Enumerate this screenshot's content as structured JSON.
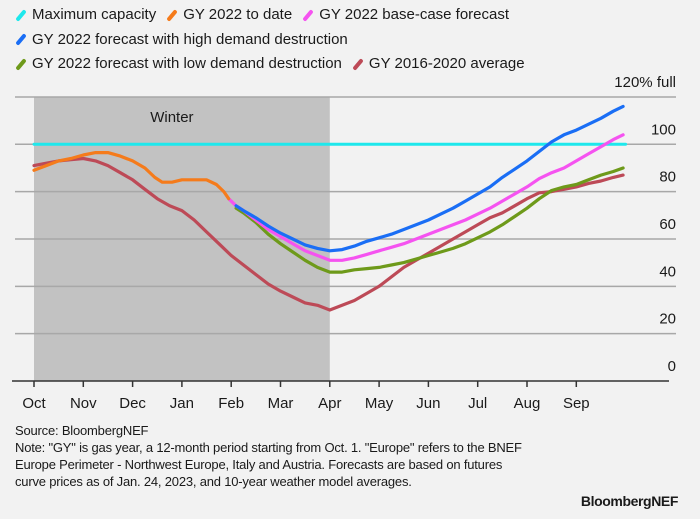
{
  "chart_data": {
    "type": "line",
    "title": "",
    "xlabel": "",
    "ylabel": "",
    "y_unit_label": "120% full",
    "ylim": [
      0,
      120
    ],
    "yticks": [
      0,
      20,
      40,
      60,
      80,
      100
    ],
    "x_categories": [
      "Oct",
      "Nov",
      "Dec",
      "Jan",
      "Feb",
      "Mar",
      "Apr",
      "May",
      "Jun",
      "Jul",
      "Aug",
      "Sep"
    ],
    "x_note": "x values are months since Oct 1 (0 = Oct 1, 12 = end of Sep)",
    "grid": true,
    "shaded_region": {
      "label": "Winter",
      "x_start": 0,
      "x_end": 6
    },
    "legend_placement": "top",
    "series": [
      {
        "name": "Maximum capacity",
        "color": "#1ee8ec",
        "points": [
          [
            0,
            100
          ],
          [
            12,
            100
          ]
        ]
      },
      {
        "name": "GY 2022 to date",
        "color": "#f57b1b",
        "points": [
          [
            0,
            89
          ],
          [
            0.25,
            91
          ],
          [
            0.5,
            93
          ],
          [
            0.75,
            94
          ],
          [
            1.0,
            95.5
          ],
          [
            1.25,
            96.5
          ],
          [
            1.5,
            96.5
          ],
          [
            1.75,
            95
          ],
          [
            2.0,
            93
          ],
          [
            2.25,
            90
          ],
          [
            2.45,
            86
          ],
          [
            2.6,
            84
          ],
          [
            2.8,
            84
          ],
          [
            3.0,
            85
          ],
          [
            3.25,
            85
          ],
          [
            3.5,
            85
          ],
          [
            3.7,
            83
          ],
          [
            3.85,
            80
          ],
          [
            3.95,
            77
          ]
        ]
      },
      {
        "name": "GY 2022 base-case forecast",
        "color": "#f553f0",
        "points": [
          [
            3.95,
            77
          ],
          [
            4.1,
            74
          ],
          [
            4.25,
            72
          ],
          [
            4.5,
            68
          ],
          [
            4.75,
            64
          ],
          [
            5.0,
            61
          ],
          [
            5.25,
            58
          ],
          [
            5.5,
            55
          ],
          [
            5.75,
            53
          ],
          [
            6.0,
            51
          ],
          [
            6.25,
            51
          ],
          [
            6.5,
            52
          ],
          [
            6.75,
            53.5
          ],
          [
            7.0,
            55
          ],
          [
            7.25,
            56.5
          ],
          [
            7.5,
            58
          ],
          [
            7.75,
            60
          ],
          [
            8.0,
            62
          ],
          [
            8.25,
            64
          ],
          [
            8.5,
            66
          ],
          [
            8.75,
            68
          ],
          [
            9.0,
            70.5
          ],
          [
            9.25,
            73
          ],
          [
            9.5,
            76
          ],
          [
            9.75,
            79
          ],
          [
            10.0,
            82
          ],
          [
            10.25,
            85.5
          ],
          [
            10.5,
            88
          ],
          [
            10.75,
            90
          ],
          [
            11.0,
            93
          ],
          [
            11.25,
            96
          ],
          [
            11.5,
            99
          ],
          [
            11.75,
            102
          ],
          [
            11.95,
            104
          ]
        ]
      },
      {
        "name": "GY 2022 forecast with high demand destruction",
        "color": "#1a6ef5",
        "points": [
          [
            4.1,
            74
          ],
          [
            4.25,
            72
          ],
          [
            4.5,
            69
          ],
          [
            4.75,
            65.5
          ],
          [
            5.0,
            62.5
          ],
          [
            5.25,
            60
          ],
          [
            5.5,
            57.5
          ],
          [
            5.75,
            56
          ],
          [
            6.0,
            55
          ],
          [
            6.25,
            55.5
          ],
          [
            6.5,
            57
          ],
          [
            6.75,
            59
          ],
          [
            7.0,
            60.5
          ],
          [
            7.25,
            62
          ],
          [
            7.5,
            64
          ],
          [
            7.75,
            66
          ],
          [
            8.0,
            68
          ],
          [
            8.25,
            70.5
          ],
          [
            8.5,
            73
          ],
          [
            8.75,
            76
          ],
          [
            9.0,
            79
          ],
          [
            9.25,
            82
          ],
          [
            9.5,
            86
          ],
          [
            9.75,
            89.5
          ],
          [
            10.0,
            93
          ],
          [
            10.25,
            97
          ],
          [
            10.5,
            101
          ],
          [
            10.75,
            104
          ],
          [
            11.0,
            106
          ],
          [
            11.25,
            108.5
          ],
          [
            11.5,
            111
          ],
          [
            11.75,
            114
          ],
          [
            11.95,
            116
          ]
        ]
      },
      {
        "name": "GY 2022 forecast with low demand destruction",
        "color": "#6e9a1a",
        "points": [
          [
            4.1,
            73
          ],
          [
            4.25,
            71
          ],
          [
            4.5,
            67
          ],
          [
            4.75,
            62
          ],
          [
            5.0,
            58
          ],
          [
            5.25,
            54.5
          ],
          [
            5.5,
            51
          ],
          [
            5.75,
            48
          ],
          [
            6.0,
            46
          ],
          [
            6.25,
            46
          ],
          [
            6.5,
            47
          ],
          [
            6.75,
            47.5
          ],
          [
            7.0,
            48
          ],
          [
            7.25,
            49
          ],
          [
            7.5,
            50
          ],
          [
            7.75,
            51.5
          ],
          [
            8.0,
            53
          ],
          [
            8.25,
            54.5
          ],
          [
            8.5,
            56
          ],
          [
            8.75,
            58
          ],
          [
            9.0,
            60.5
          ],
          [
            9.25,
            63
          ],
          [
            9.5,
            66
          ],
          [
            9.75,
            69.5
          ],
          [
            10.0,
            73
          ],
          [
            10.25,
            77
          ],
          [
            10.5,
            80.5
          ],
          [
            10.75,
            82
          ],
          [
            11.0,
            83
          ],
          [
            11.25,
            85
          ],
          [
            11.5,
            87
          ],
          [
            11.75,
            88.5
          ],
          [
            11.95,
            90
          ]
        ]
      },
      {
        "name": "GY 2016-2020 average",
        "color": "#bd4a57",
        "points": [
          [
            0,
            91
          ],
          [
            0.25,
            92
          ],
          [
            0.5,
            93
          ],
          [
            0.75,
            93.5
          ],
          [
            1.0,
            94
          ],
          [
            1.25,
            93
          ],
          [
            1.5,
            91
          ],
          [
            1.75,
            88
          ],
          [
            2.0,
            85
          ],
          [
            2.25,
            81
          ],
          [
            2.5,
            77
          ],
          [
            2.75,
            74
          ],
          [
            3.0,
            72
          ],
          [
            3.25,
            68
          ],
          [
            3.5,
            63
          ],
          [
            3.75,
            58
          ],
          [
            4.0,
            53
          ],
          [
            4.25,
            49
          ],
          [
            4.5,
            45
          ],
          [
            4.75,
            41
          ],
          [
            5.0,
            38
          ],
          [
            5.25,
            35.5
          ],
          [
            5.5,
            33
          ],
          [
            5.75,
            32
          ],
          [
            6.0,
            30
          ],
          [
            6.25,
            32
          ],
          [
            6.5,
            34
          ],
          [
            6.75,
            37
          ],
          [
            7.0,
            40
          ],
          [
            7.25,
            44
          ],
          [
            7.5,
            48
          ],
          [
            7.75,
            51
          ],
          [
            8.0,
            54
          ],
          [
            8.25,
            57
          ],
          [
            8.5,
            60
          ],
          [
            8.75,
            63
          ],
          [
            9.0,
            66
          ],
          [
            9.25,
            69
          ],
          [
            9.5,
            71
          ],
          [
            9.75,
            74
          ],
          [
            10.0,
            77
          ],
          [
            10.25,
            79.5
          ],
          [
            10.5,
            80
          ],
          [
            10.75,
            81
          ],
          [
            11.0,
            82
          ],
          [
            11.25,
            83.5
          ],
          [
            11.5,
            84.5
          ],
          [
            11.75,
            86
          ],
          [
            11.95,
            87
          ]
        ]
      }
    ]
  },
  "legend": {
    "rows": [
      [
        0,
        1,
        2
      ],
      [
        3
      ],
      [
        4,
        5
      ]
    ]
  },
  "footer": {
    "source": "Source: BloombergNEF",
    "note": "Note: \"GY\" is gas year, a 12-month period starting from Oct. 1. \"Europe\" refers to the BNEF Europe Perimeter - Northwest Europe, Italy and Austria. Forecasts are based on futures curve prices as of Jan. 24, 2023, and 10-year weather model averages.",
    "brand": "BloombergNEF"
  }
}
